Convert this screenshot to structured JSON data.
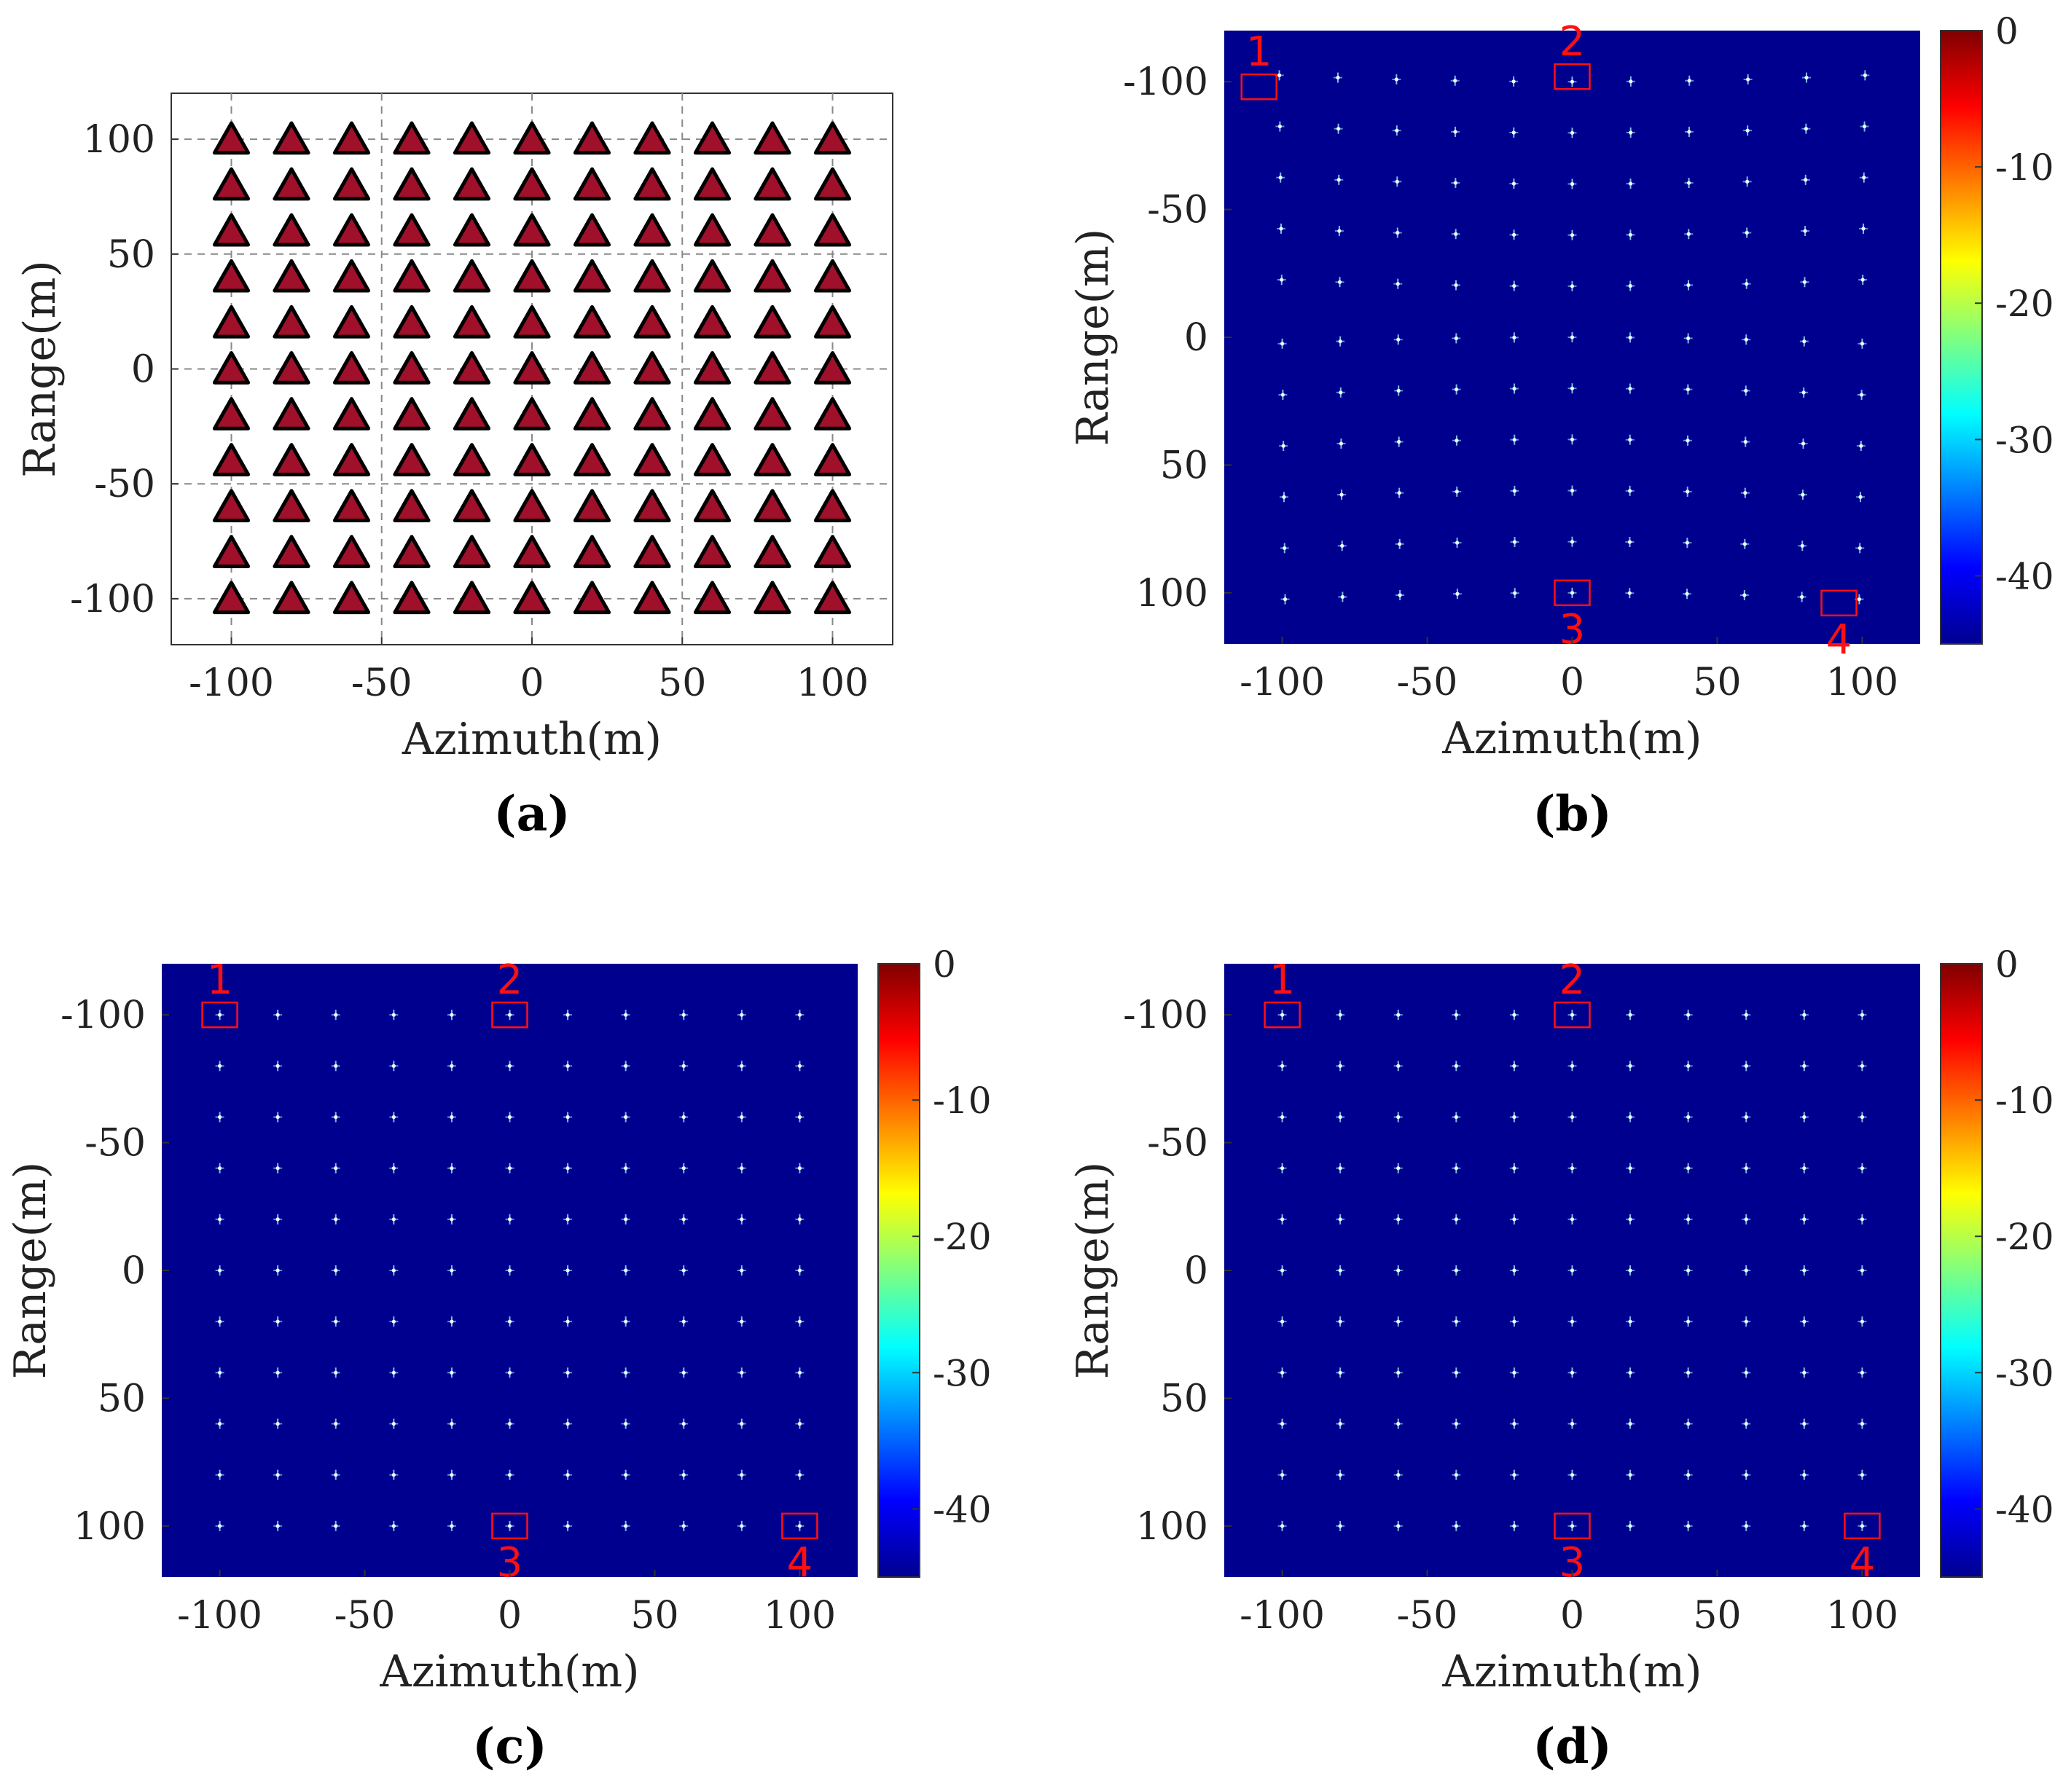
{
  "colors": {
    "background": "#ffffff",
    "image_background": "#00008f",
    "grid": "#888888",
    "triangle_fill": "#a0102a",
    "triangle_stroke": "#000000",
    "highlight_box": "#ff1010",
    "target_point": "#9fe8ff"
  },
  "chart_data": [
    {
      "id": "a",
      "type": "scatter",
      "panel_label": "(a)",
      "marker": "triangle",
      "xlabel": "Azimuth(m)",
      "ylabel": "Range(m)",
      "xlim": [
        -120,
        120
      ],
      "ylim": [
        -120,
        120
      ],
      "y_direction": "normal",
      "grid": true,
      "xticks": [
        -100,
        -50,
        0,
        50,
        100
      ],
      "yticks": [
        100,
        50,
        0,
        -50,
        -100
      ],
      "x": [
        -100,
        -80,
        -60,
        -40,
        -20,
        0,
        20,
        40,
        60,
        80,
        100
      ],
      "y": [
        100,
        80,
        60,
        40,
        20,
        0,
        -20,
        -40,
        -60,
        -80,
        -100
      ]
    },
    {
      "id": "b",
      "type": "heatmap",
      "panel_label": "(b)",
      "xlabel": "Azimuth(m)",
      "ylabel": "Range(m)",
      "xlim": [
        -120,
        120
      ],
      "ylim": [
        -120,
        120
      ],
      "y_direction": "reverse",
      "grid": false,
      "xticks": [
        -100,
        -50,
        0,
        50,
        100
      ],
      "yticks": [
        -100,
        -50,
        0,
        50,
        100
      ],
      "colorbar": {
        "range": [
          -45,
          0
        ],
        "ticks": [
          0,
          -10,
          -20,
          -30,
          -40
        ]
      },
      "targets": "11 x 11 grid of point targets, distorted (defocused)",
      "grid_x": [
        -100,
        -80,
        -60,
        -40,
        -20,
        0,
        20,
        40,
        60,
        80,
        100
      ],
      "grid_y": [
        -100,
        -80,
        -60,
        -40,
        -20,
        0,
        20,
        40,
        60,
        80,
        100
      ],
      "distortion": 0.1,
      "highlight_boxes": [
        {
          "label": "1",
          "x": -108,
          "y": -98,
          "label_position": "above"
        },
        {
          "label": "2",
          "x": 0,
          "y": -102,
          "label_position": "above"
        },
        {
          "label": "3",
          "x": 0,
          "y": 100,
          "label_position": "below"
        },
        {
          "label": "4",
          "x": 92,
          "y": 104,
          "label_position": "below"
        }
      ]
    },
    {
      "id": "c",
      "type": "heatmap",
      "panel_label": "(c)",
      "xlabel": "Azimuth(m)",
      "ylabel": "Range(m)",
      "xlim": [
        -120,
        120
      ],
      "ylim": [
        -120,
        120
      ],
      "y_direction": "reverse",
      "grid": false,
      "xticks": [
        -100,
        -50,
        0,
        50,
        100
      ],
      "yticks": [
        -100,
        -50,
        0,
        50,
        100
      ],
      "colorbar": {
        "range": [
          -45,
          0
        ],
        "ticks": [
          0,
          -10,
          -20,
          -30,
          -40
        ]
      },
      "targets": "11 x 11 grid of point targets, focused",
      "grid_x": [
        -100,
        -80,
        -60,
        -40,
        -20,
        0,
        20,
        40,
        60,
        80,
        100
      ],
      "grid_y": [
        -100,
        -80,
        -60,
        -40,
        -20,
        0,
        20,
        40,
        60,
        80,
        100
      ],
      "distortion": 0,
      "highlight_boxes": [
        {
          "label": "1",
          "x": -100,
          "y": -100,
          "label_position": "above"
        },
        {
          "label": "2",
          "x": 0,
          "y": -100,
          "label_position": "above"
        },
        {
          "label": "3",
          "x": 0,
          "y": 100,
          "label_position": "below"
        },
        {
          "label": "4",
          "x": 100,
          "y": 100,
          "label_position": "below"
        }
      ]
    },
    {
      "id": "d",
      "type": "heatmap",
      "panel_label": "(d)",
      "xlabel": "Azimuth(m)",
      "ylabel": "Range(m)",
      "xlim": [
        -120,
        120
      ],
      "ylim": [
        -120,
        120
      ],
      "y_direction": "reverse",
      "grid": false,
      "xticks": [
        -100,
        -50,
        0,
        50,
        100
      ],
      "yticks": [
        -100,
        -50,
        0,
        50,
        100
      ],
      "colorbar": {
        "range": [
          -45,
          0
        ],
        "ticks": [
          0,
          -10,
          -20,
          -30,
          -40
        ]
      },
      "targets": "11 x 11 grid of point targets, focused",
      "grid_x": [
        -100,
        -80,
        -60,
        -40,
        -20,
        0,
        20,
        40,
        60,
        80,
        100
      ],
      "grid_y": [
        -100,
        -80,
        -60,
        -40,
        -20,
        0,
        20,
        40,
        60,
        80,
        100
      ],
      "distortion": 0,
      "highlight_boxes": [
        {
          "label": "1",
          "x": -100,
          "y": -100,
          "label_position": "above"
        },
        {
          "label": "2",
          "x": 0,
          "y": -100,
          "label_position": "above"
        },
        {
          "label": "3",
          "x": 0,
          "y": 100,
          "label_position": "below"
        },
        {
          "label": "4",
          "x": 100,
          "y": 100,
          "label_position": "below"
        }
      ]
    }
  ]
}
